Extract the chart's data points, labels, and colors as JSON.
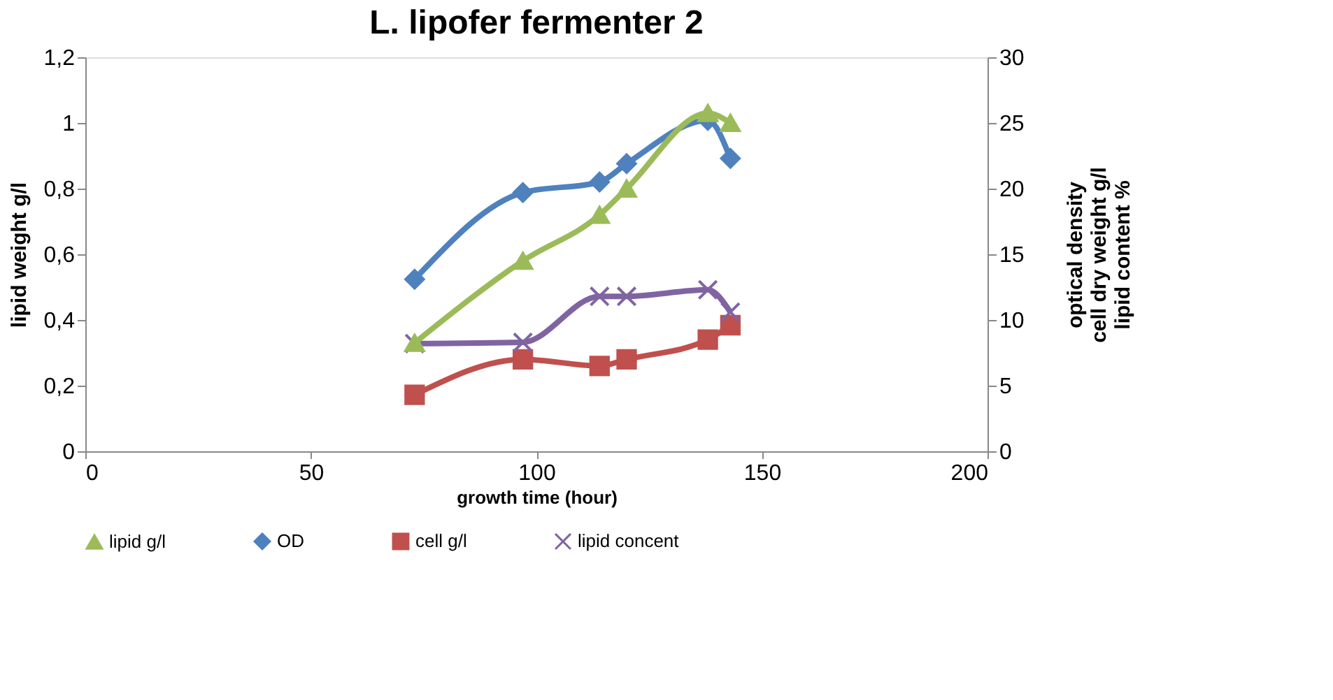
{
  "chart_data": {
    "type": "line",
    "title": "L. lipofer fermenter 2",
    "xlabel": "growth time (hour)",
    "ylabel": "lipid weight   g/l",
    "y2label": "optical density\ncell dry weight   g/l\nlipid content   %",
    "x": [
      73,
      97,
      114,
      120,
      138,
      143
    ],
    "series": [
      {
        "name": "lipid g/l",
        "color": "#9bbb59",
        "marker": "triangle",
        "values": [
          0.33,
          0.58,
          0.72,
          0.8,
          1.03,
          1.0
        ]
      },
      {
        "name": "OD",
        "color": "#4f81bd",
        "marker": "diamond",
        "axis": "y2",
        "values": [
          13.1,
          19.7,
          20.5,
          21.9,
          25.2,
          22.3
        ]
      },
      {
        "name": "cell g/l",
        "color": "#c0504d",
        "marker": "square",
        "axis": "y2",
        "values": [
          4.3,
          7.0,
          6.5,
          7.0,
          8.5,
          9.6
        ]
      },
      {
        "name": "lipid concent",
        "color": "#8064a2",
        "marker": "cross",
        "axis": "y2",
        "values": [
          8.2,
          8.3,
          11.8,
          11.8,
          12.3,
          10.6
        ]
      }
    ],
    "xlim": [
      0,
      200
    ],
    "xticks": [
      0,
      50,
      100,
      150,
      200
    ],
    "ylim": [
      0,
      1.2
    ],
    "yticks": [
      0,
      {
        "value": 0.2,
        "label": "0,2"
      },
      {
        "value": 0.4,
        "label": "0,4"
      },
      {
        "value": 0.6,
        "label": "0,6"
      },
      {
        "value": 0.8,
        "label": "0,8"
      },
      1,
      {
        "value": 1.2,
        "label": "1,2"
      }
    ],
    "y2lim": [
      0,
      30
    ],
    "y2ticks": [
      0,
      5,
      10,
      15,
      20,
      25,
      30
    ],
    "grid": false,
    "legend": "bottom"
  }
}
